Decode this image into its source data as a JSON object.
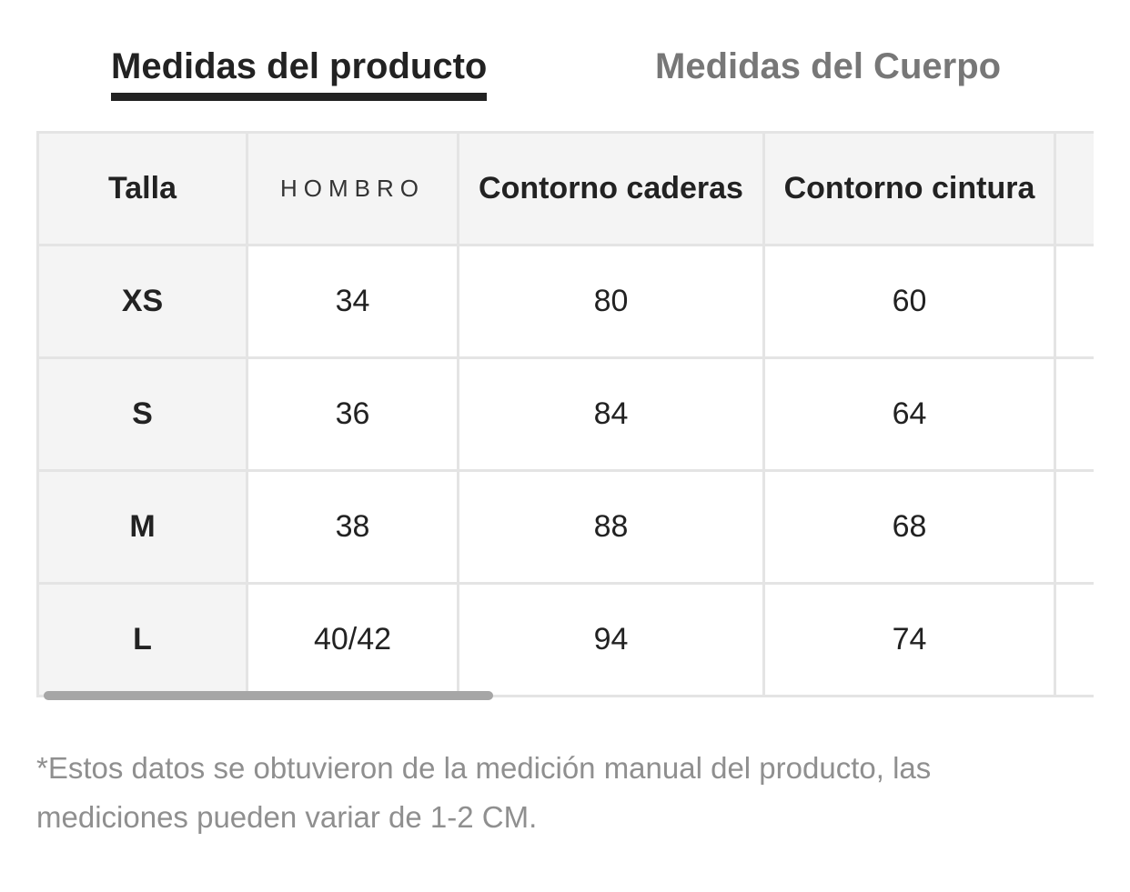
{
  "tabs": {
    "active_label": "Medidas del producto",
    "inactive_label": "Medidas del Cuerpo"
  },
  "table": {
    "headers": [
      "Talla",
      "HOMBRO",
      "Contorno caderas",
      "Contorno cintura",
      ""
    ],
    "rows": [
      [
        "XS",
        "34",
        "80",
        "60",
        ""
      ],
      [
        "S",
        "36",
        "84",
        "64",
        ""
      ],
      [
        "M",
        "38",
        "88",
        "68",
        ""
      ],
      [
        "L",
        "40/42",
        "94",
        "74",
        ""
      ]
    ]
  },
  "footnote": "*Estos datos se obtuvieron de la medición manual del producto, las mediciones pueden variar de 1-2 CM.",
  "colors": {
    "active_tab": "#222222",
    "inactive_tab": "#777777",
    "header_bg": "#f4f4f4",
    "border": "#e4e4e4",
    "scrollbar": "#a6a6a6",
    "footnote": "#8f8f8f"
  }
}
